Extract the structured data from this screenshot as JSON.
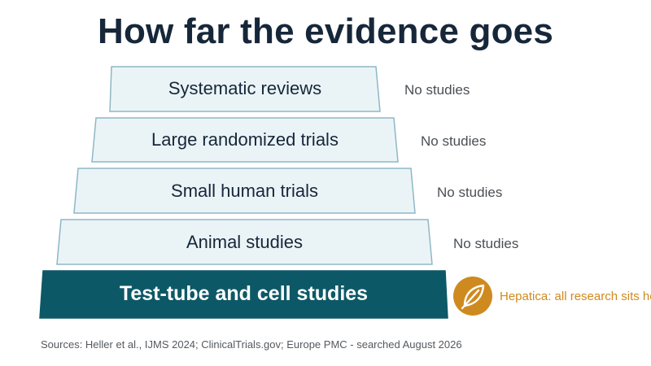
{
  "title": "How far the evidence goes",
  "tiers": [
    {
      "label": "Systematic reviews",
      "status": "No studies"
    },
    {
      "label": "Large randomized trials",
      "status": "No studies"
    },
    {
      "label": "Small human trials",
      "status": "No studies"
    },
    {
      "label": "Animal studies",
      "status": "No studies"
    },
    {
      "label": "Test-tube and cell studies",
      "highlight": "Hepatica: all research sits here"
    }
  ],
  "icons": {
    "highlight_icon": "leaf-icon"
  },
  "colors": {
    "title": "#17273a",
    "tier_fill": "#eaf4f7",
    "tier_border": "#8fb7c6",
    "base_fill": "#0d5866",
    "accent": "#cf8a1f",
    "status_text": "#4a4f55"
  },
  "sources": "Sources: Heller et al., IJMS 2024; ClinicalTrials.gov; Europe PMC - searched August 2026"
}
